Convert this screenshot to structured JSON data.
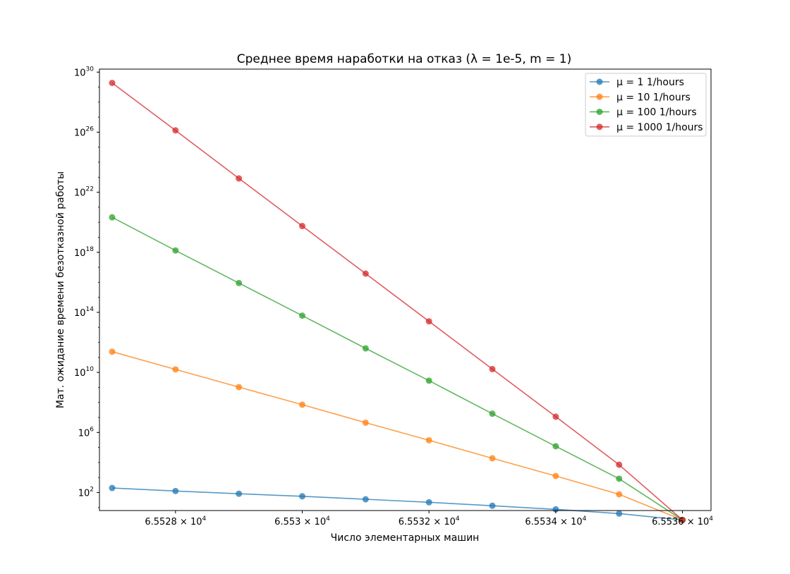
{
  "chart_data": {
    "type": "line",
    "title": "Среднее время наработки на отказ (λ = 1e-5, m = 1)",
    "xlabel": "Число элементарных машин",
    "ylabel": "Мат. ожидание времени безотказной работы",
    "yscale": "log",
    "xlim": [
      65526.8,
      65536.45
    ],
    "ylim_log10": [
      0.8,
      30.2
    ],
    "grid": false,
    "legend_position": "top-right",
    "x_ticks": [
      {
        "value": 65528,
        "mantissa": "6.5528",
        "exp": "4"
      },
      {
        "value": 65530,
        "mantissa": "6.553",
        "exp": "4"
      },
      {
        "value": 65532,
        "mantissa": "6.5532",
        "exp": "4"
      },
      {
        "value": 65534,
        "mantissa": "6.5534",
        "exp": "4"
      },
      {
        "value": 65536,
        "mantissa": "6.5536",
        "exp": "4"
      }
    ],
    "y_ticks": [
      {
        "log10": 2,
        "base": "10",
        "exp": "2"
      },
      {
        "log10": 6,
        "base": "10",
        "exp": "6"
      },
      {
        "log10": 10,
        "base": "10",
        "exp": "10"
      },
      {
        "log10": 14,
        "base": "10",
        "exp": "14"
      },
      {
        "log10": 18,
        "base": "10",
        "exp": "18"
      },
      {
        "log10": 22,
        "base": "10",
        "exp": "22"
      },
      {
        "log10": 26,
        "base": "10",
        "exp": "26"
      },
      {
        "log10": 30,
        "base": "10",
        "exp": "30"
      }
    ],
    "x": [
      65527,
      65528,
      65529,
      65530,
      65531,
      65532,
      65533,
      65534,
      65535,
      65536
    ],
    "series": [
      {
        "name": "μ = 1 1/hours",
        "color": "#1f77b4",
        "log10_values": [
          2.3,
          2.1,
          1.92,
          1.75,
          1.55,
          1.35,
          1.12,
          0.88,
          0.6,
          0.17
        ]
      },
      {
        "name": "μ = 10 1/hours",
        "color": "#ff7f0e",
        "log10_values": [
          11.38,
          10.2,
          9.02,
          7.85,
          6.65,
          5.48,
          4.28,
          3.1,
          1.88,
          0.17
        ]
      },
      {
        "name": "μ = 100 1/hours",
        "color": "#2ca02c",
        "log10_values": [
          20.33,
          18.12,
          15.95,
          13.78,
          11.6,
          9.45,
          7.25,
          5.08,
          2.92,
          0.17
        ]
      },
      {
        "name": "μ = 1000 1/hours",
        "color": "#d62728",
        "log10_values": [
          29.28,
          26.12,
          22.92,
          19.75,
          16.58,
          13.4,
          10.22,
          7.05,
          3.85,
          0.17
        ]
      }
    ]
  }
}
